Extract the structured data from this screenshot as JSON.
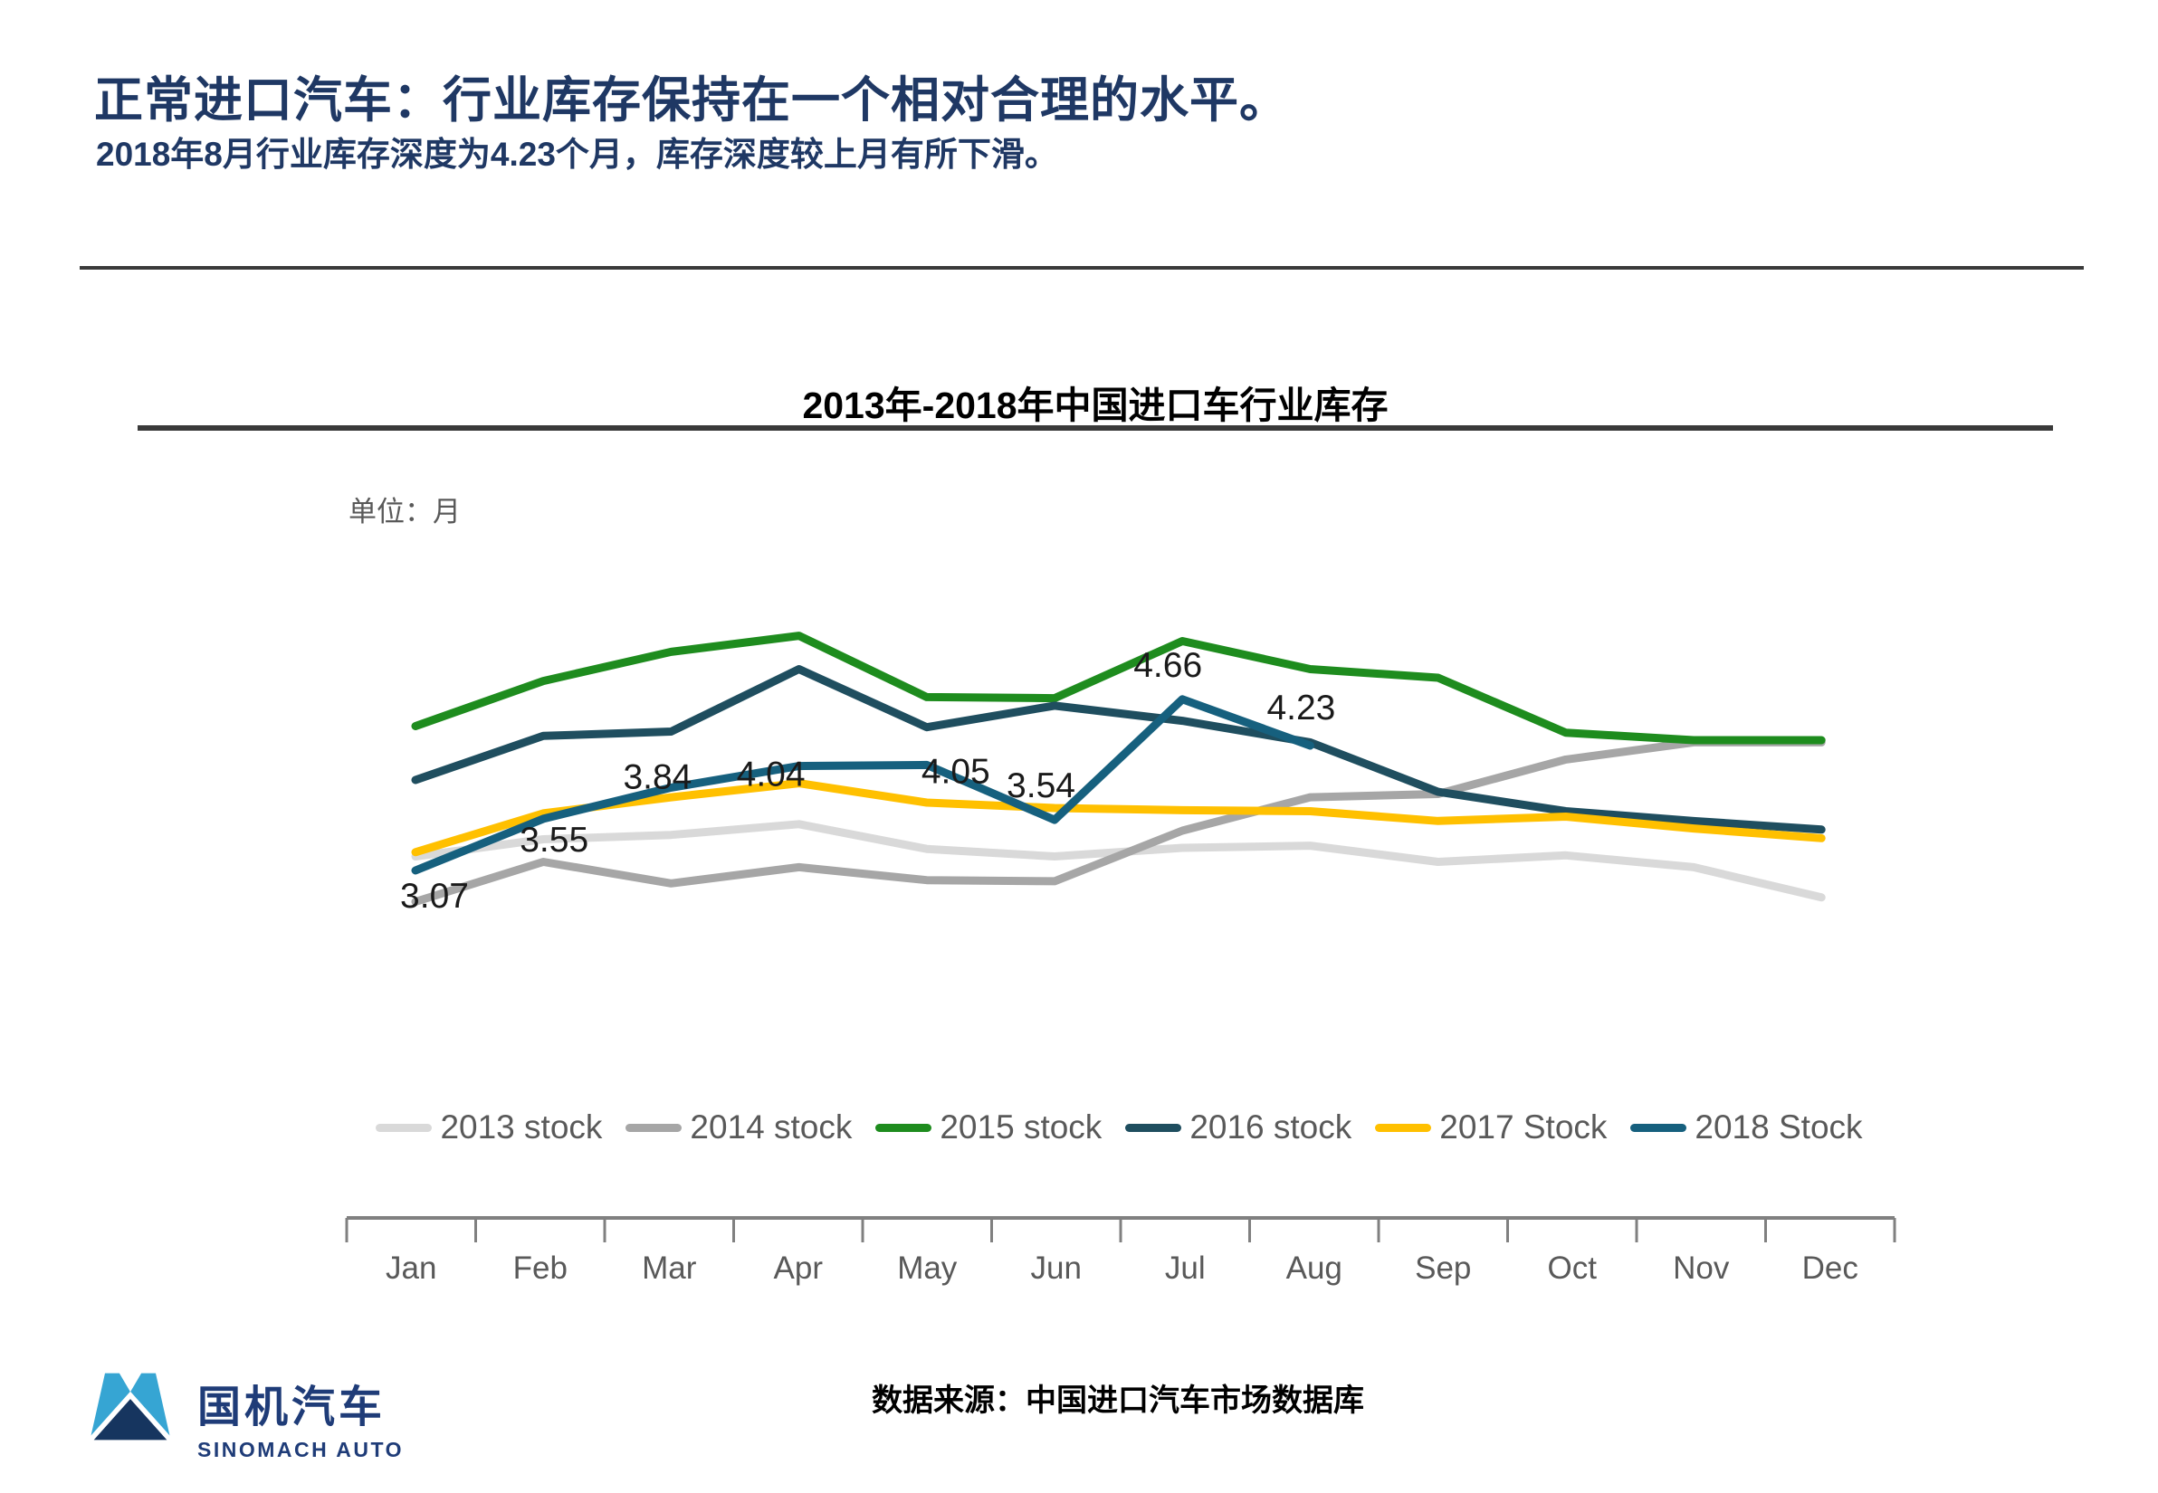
{
  "header": {
    "title": "正常进口汽车：行业库存保持在一个相对合理的水平。",
    "subtitle": "2018年8月行业库存深度为4.23个月，库存深度较上月有所下滑。"
  },
  "chart": {
    "title": "2013年-2018年中国进口车行业库存",
    "unit_label": "单位：月"
  },
  "chart_data": {
    "type": "line",
    "title": "2013年-2018年中国进口车行业库存",
    "unit": "月",
    "categories": [
      "Jan",
      "Feb",
      "Mar",
      "Apr",
      "May",
      "Jun",
      "Jul",
      "Aug",
      "Sep",
      "Oct",
      "Nov",
      "Dec"
    ],
    "ylim": [
      2.6,
      5.5
    ],
    "grid": false,
    "legend_position": "bottom",
    "series": [
      {
        "name": "2013 stock",
        "color": "#D9D9D9",
        "values": [
          3.2,
          3.36,
          3.4,
          3.5,
          3.27,
          3.2,
          3.28,
          3.3,
          3.15,
          3.21,
          3.1,
          2.82
        ]
      },
      {
        "name": "2014 stock",
        "color": "#A6A6A6",
        "values": [
          2.78,
          3.15,
          2.95,
          3.1,
          2.98,
          2.97,
          3.44,
          3.75,
          3.78,
          4.1,
          4.26,
          4.26
        ]
      },
      {
        "name": "2015 stock",
        "color": "#1E8C1E",
        "values": [
          4.41,
          4.83,
          5.1,
          5.25,
          4.68,
          4.67,
          5.2,
          4.94,
          4.86,
          4.35,
          4.28,
          4.28
        ]
      },
      {
        "name": "2016 stock",
        "color": "#1F4E5F",
        "values": [
          3.91,
          4.32,
          4.36,
          4.94,
          4.4,
          4.6,
          4.46,
          4.26,
          3.8,
          3.62,
          3.53,
          3.45
        ]
      },
      {
        "name": "2017 Stock",
        "color": "#FFC000",
        "values": [
          3.24,
          3.6,
          3.75,
          3.88,
          3.7,
          3.65,
          3.63,
          3.62,
          3.53,
          3.57,
          3.46,
          3.37
        ]
      },
      {
        "name": "2018 Stock",
        "color": "#16607E",
        "values": [
          3.07,
          3.55,
          3.84,
          4.04,
          4.05,
          3.54,
          4.66,
          4.23
        ]
      }
    ],
    "point_labels": [
      {
        "series": "2018 Stock",
        "index": 0,
        "text": "3.07"
      },
      {
        "series": "2018 Stock",
        "index": 1,
        "text": "3.55"
      },
      {
        "series": "2018 Stock",
        "index": 2,
        "text": "3.84"
      },
      {
        "series": "2018 Stock",
        "index": 3,
        "text": "4.04"
      },
      {
        "series": "2018 Stock",
        "index": 4,
        "text": "4.05"
      },
      {
        "series": "2018 Stock",
        "index": 5,
        "text": "3.54"
      },
      {
        "series": "2018 Stock",
        "index": 6,
        "text": "4.66"
      },
      {
        "series": "2018 Stock",
        "index": 7,
        "text": "4.23"
      }
    ]
  },
  "footer": {
    "logo_text": "国机汽车",
    "logo_subtext": "SINOMACH AUTO",
    "source": "数据来源：中国进口汽车市场数据库"
  }
}
